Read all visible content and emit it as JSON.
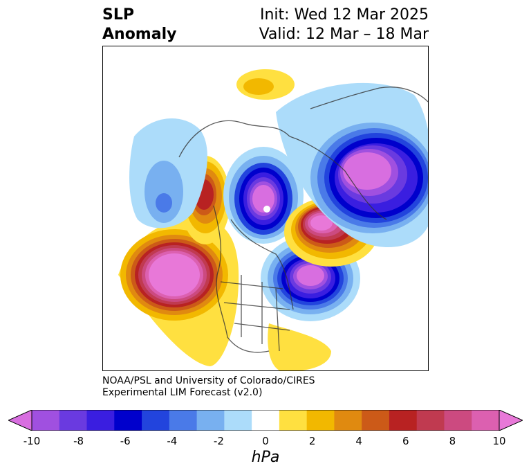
{
  "header": {
    "title_line1": "SLP",
    "title_line2": "Anomaly",
    "init_text": "Init: Wed 12 Mar 2025",
    "valid_text": "Valid: 12 Mar – 18 Mar"
  },
  "credit": {
    "line1": "NOAA/PSL and University of Colorado/CIRES",
    "line2": "Experimental LIM Forecast (v2.0)"
  },
  "colorbar": {
    "unit": "hPa",
    "ticks": [
      "-10",
      "-8",
      "-6",
      "-4",
      "-2",
      "0",
      "2",
      "4",
      "6",
      "8",
      "10"
    ],
    "colors": [
      "#d86ee0",
      "#a050e0",
      "#6a3ae0",
      "#3a1ee0",
      "#0000cc",
      "#2244dd",
      "#4a7ae8",
      "#78b0f0",
      "#acdcfa",
      "#ffffff",
      "#ffe040",
      "#f2b800",
      "#e08a10",
      "#cc5a18",
      "#b82222",
      "#c03a50",
      "#cc4a80",
      "#dc60b0",
      "#e878d8"
    ]
  },
  "anomalies": [
    {
      "name": "low-arctic",
      "sign": "negative",
      "peak": -10
    },
    {
      "name": "low-eurasia",
      "sign": "negative",
      "peak": -10
    },
    {
      "name": "low-north-atlantic",
      "sign": "negative",
      "peak": -10
    },
    {
      "name": "low-north-pacific",
      "sign": "negative",
      "peak": -4
    },
    {
      "name": "high-gulf-of-alaska",
      "sign": "positive",
      "peak": 10
    },
    {
      "name": "high-alaska-siberia",
      "sign": "positive",
      "peak": 8
    },
    {
      "name": "high-scandinavia",
      "sign": "positive",
      "peak": 10
    },
    {
      "name": "high-north-africa",
      "sign": "positive",
      "peak": 2
    },
    {
      "name": "high-caribbean",
      "sign": "positive",
      "peak": 2
    }
  ]
}
